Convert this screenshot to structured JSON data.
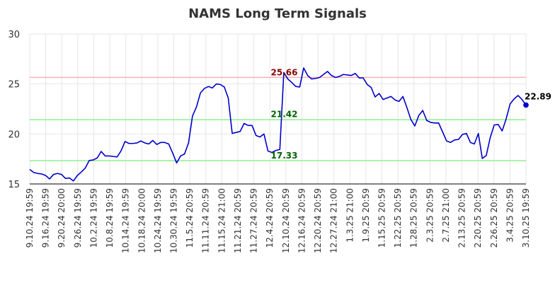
{
  "chart_data": {
    "type": "line",
    "title": "NAMS Long Term Signals",
    "ylim": [
      15,
      30
    ],
    "yticks": [
      15,
      20,
      25,
      30
    ],
    "grid": true,
    "x_tick_labels": [
      "9.10.24 19:59",
      "9.16.24 19:59",
      "9.20.24 20:00",
      "9.26.24 19:59",
      "10.2.24 19:59",
      "10.8.24 19:59",
      "10.14.24 19:59",
      "10.18.24 20:00",
      "10.24.24 19:59",
      "10.30.24 19:59",
      "11.5.24 20:59",
      "11.11.24 20:59",
      "11.15.24 21:00",
      "11.21.24 20:59",
      "11.27.24 20:59",
      "12.4.24 20:59",
      "12.10.24 20:59",
      "12.16.24 20:59",
      "12.20.24 20:59",
      "12.27.24 21:00",
      "1.3.25 21:00",
      "1.9.25 20:59",
      "1.15.25 20:59",
      "1.22.25 20:59",
      "1.28.25 20:59",
      "2.3.25 20:59",
      "2.7.25 21:00",
      "2.13.25 20:59",
      "2.20.25 20:59",
      "2.26.25 20:59",
      "3.4.25 20:59",
      "3.10.25 19:59"
    ],
    "series": [
      {
        "color": "#0000cc",
        "values": [
          16.45,
          16.15,
          16.05,
          16.0,
          15.85,
          15.5,
          15.95,
          16.05,
          15.95,
          15.55,
          15.6,
          15.3,
          15.85,
          16.2,
          16.6,
          17.35,
          17.4,
          17.6,
          18.25,
          17.8,
          17.8,
          17.75,
          17.7,
          18.3,
          19.25,
          19.05,
          19.05,
          19.1,
          19.3,
          19.1,
          19.0,
          19.35,
          18.95,
          19.15,
          19.15,
          19.0,
          18.1,
          17.1,
          17.8,
          18.0,
          19.1,
          21.8,
          22.7,
          24.1,
          24.55,
          24.75,
          24.6,
          25.0,
          24.95,
          24.7,
          23.6,
          20.05,
          20.15,
          20.25,
          21.05,
          20.85,
          20.85,
          19.85,
          19.7,
          20.0,
          18.3,
          18.15,
          18.35,
          18.45,
          26.15,
          25.5,
          25.15,
          24.75,
          24.7,
          26.6,
          25.85,
          25.5,
          25.55,
          25.65,
          25.95,
          26.25,
          25.85,
          25.65,
          25.75,
          25.95,
          25.9,
          25.85,
          26.05,
          25.6,
          25.6,
          24.95,
          24.65,
          23.7,
          24.05,
          23.45,
          23.6,
          23.75,
          23.4,
          23.25,
          23.75,
          22.65,
          21.45,
          20.8,
          21.85,
          22.35,
          21.35,
          21.15,
          21.1,
          21.1,
          20.2,
          19.3,
          19.15,
          19.4,
          19.45,
          19.95,
          20.05,
          19.15,
          19.0,
          20.05,
          17.55,
          17.85,
          19.65,
          20.9,
          20.95,
          20.3,
          21.5,
          23.0,
          23.5,
          23.85,
          23.45,
          22.89
        ]
      }
    ],
    "reference_lines": [
      {
        "value": 25.66,
        "label": "25.66",
        "line_color": "#ffb3b3",
        "text_color": "#8b0000"
      },
      {
        "value": 21.42,
        "label": "21.42",
        "line_color": "#90ee90",
        "text_color": "#006400"
      },
      {
        "value": 17.33,
        "label": "17.33",
        "line_color": "#90ee90",
        "text_color": "#006400"
      }
    ],
    "last_value_label": "22.89"
  }
}
